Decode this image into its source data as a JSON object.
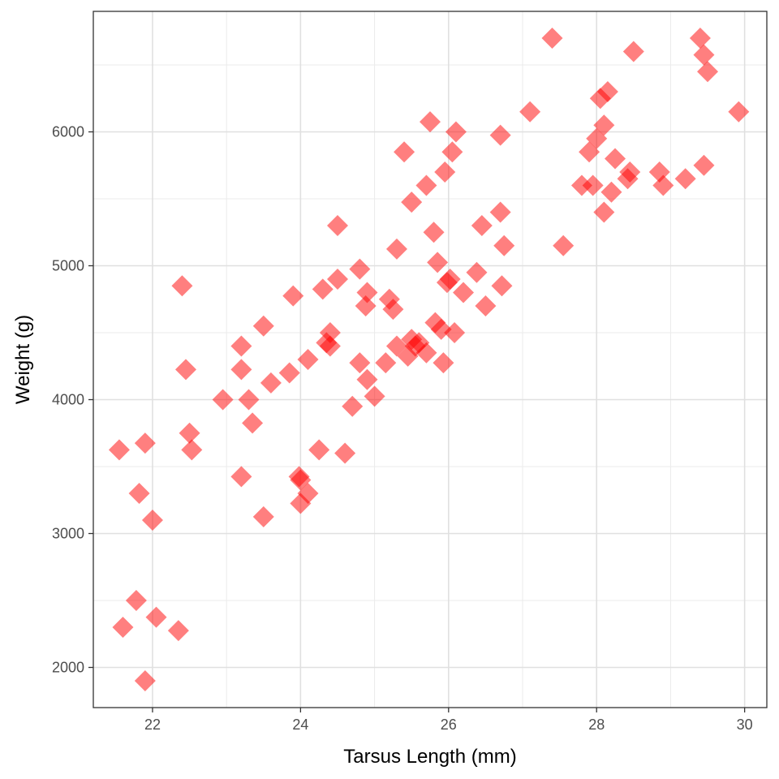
{
  "chart_data": {
    "type": "scatter",
    "title": "",
    "xlabel": "Tarsus Length (mm)",
    "ylabel": "Weight (g)",
    "xlim": [
      21.2,
      30.3
    ],
    "ylim": [
      1700,
      6900
    ],
    "x_ticks": [
      22,
      24,
      26,
      28,
      30
    ],
    "y_ticks": [
      2000,
      3000,
      4000,
      5000,
      6000
    ],
    "grid": true,
    "marker": "diamond",
    "marker_color": "#ff0000",
    "marker_opacity": 0.5,
    "points": [
      [
        21.55,
        3625
      ],
      [
        21.6,
        2300
      ],
      [
        21.78,
        2500
      ],
      [
        21.82,
        3300
      ],
      [
        21.9,
        3675
      ],
      [
        21.9,
        1900
      ],
      [
        22.0,
        3100
      ],
      [
        22.05,
        2375
      ],
      [
        22.35,
        2275
      ],
      [
        22.4,
        4850
      ],
      [
        22.45,
        4225
      ],
      [
        22.5,
        3750
      ],
      [
        22.53,
        3625
      ],
      [
        22.95,
        4000
      ],
      [
        23.2,
        4400
      ],
      [
        23.2,
        4225
      ],
      [
        23.2,
        3425
      ],
      [
        23.3,
        4000
      ],
      [
        23.35,
        3825
      ],
      [
        23.5,
        4550
      ],
      [
        23.5,
        3125
      ],
      [
        23.6,
        4125
      ],
      [
        23.85,
        4200
      ],
      [
        23.9,
        4775
      ],
      [
        23.98,
        3425
      ],
      [
        24.0,
        3400
      ],
      [
        24.0,
        3225
      ],
      [
        24.1,
        4300
      ],
      [
        24.1,
        3300
      ],
      [
        24.25,
        3625
      ],
      [
        24.3,
        4825
      ],
      [
        24.35,
        4425
      ],
      [
        24.4,
        4500
      ],
      [
        24.4,
        4400
      ],
      [
        24.5,
        4900
      ],
      [
        24.5,
        5300
      ],
      [
        24.6,
        3600
      ],
      [
        24.7,
        3950
      ],
      [
        24.8,
        4975
      ],
      [
        24.8,
        4275
      ],
      [
        24.88,
        4700
      ],
      [
        24.9,
        4800
      ],
      [
        24.9,
        4150
      ],
      [
        25.0,
        4025
      ],
      [
        25.15,
        4275
      ],
      [
        25.2,
        4750
      ],
      [
        25.25,
        4675
      ],
      [
        25.3,
        5125
      ],
      [
        25.3,
        4400
      ],
      [
        25.4,
        5850
      ],
      [
        25.45,
        4325
      ],
      [
        25.5,
        4450
      ],
      [
        25.5,
        5475
      ],
      [
        25.55,
        4400
      ],
      [
        25.6,
        4425
      ],
      [
        25.7,
        5600
      ],
      [
        25.7,
        4350
      ],
      [
        25.75,
        6075
      ],
      [
        25.8,
        5250
      ],
      [
        25.82,
        4575
      ],
      [
        25.85,
        5025
      ],
      [
        25.9,
        4525
      ],
      [
        25.93,
        4275
      ],
      [
        25.95,
        5700
      ],
      [
        25.98,
        4875
      ],
      [
        26.02,
        4900
      ],
      [
        26.05,
        5850
      ],
      [
        26.08,
        4500
      ],
      [
        26.1,
        6000
      ],
      [
        26.2,
        4800
      ],
      [
        26.38,
        4950
      ],
      [
        26.45,
        5300
      ],
      [
        26.5,
        4700
      ],
      [
        26.7,
        5975
      ],
      [
        26.7,
        5400
      ],
      [
        26.72,
        4850
      ],
      [
        26.75,
        5150
      ],
      [
        27.1,
        6150
      ],
      [
        27.4,
        6700
      ],
      [
        27.55,
        5150
      ],
      [
        27.8,
        5600
      ],
      [
        27.9,
        5850
      ],
      [
        27.95,
        5600
      ],
      [
        28.0,
        5950
      ],
      [
        28.05,
        6250
      ],
      [
        28.1,
        6050
      ],
      [
        28.1,
        5400
      ],
      [
        28.15,
        6300
      ],
      [
        28.2,
        5550
      ],
      [
        28.25,
        5800
      ],
      [
        28.42,
        5650
      ],
      [
        28.45,
        5700
      ],
      [
        28.5,
        6600
      ],
      [
        28.85,
        5700
      ],
      [
        28.9,
        5600
      ],
      [
        29.2,
        5650
      ],
      [
        29.4,
        6700
      ],
      [
        29.45,
        6575
      ],
      [
        29.45,
        5750
      ],
      [
        29.5,
        6450
      ],
      [
        29.92,
        6150
      ]
    ]
  }
}
